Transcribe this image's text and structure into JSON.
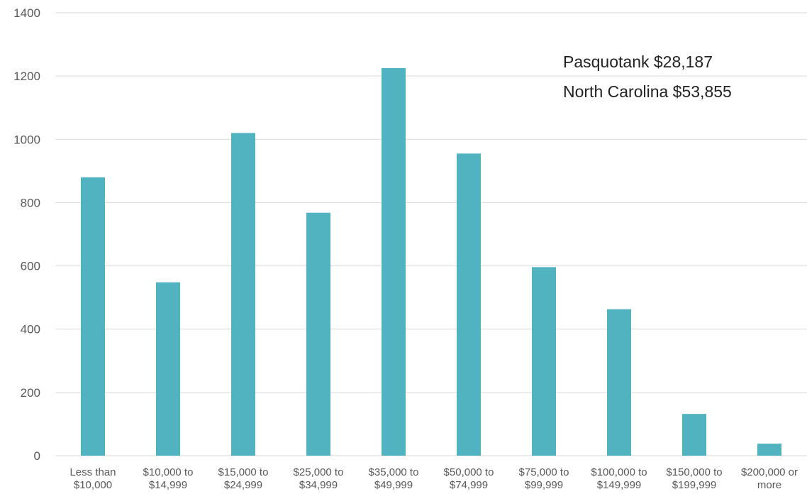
{
  "chart_data": {
    "type": "bar",
    "categories": [
      [
        "Less than",
        "$10,000"
      ],
      [
        "$10,000 to",
        "$14,999"
      ],
      [
        "$15,000 to",
        "$24,999"
      ],
      [
        "$25,000 to",
        "$34,999"
      ],
      [
        "$35,000 to",
        "$49,999"
      ],
      [
        "$50,000 to",
        "$74,999"
      ],
      [
        "$75,000 to",
        "$99,999"
      ],
      [
        "$100,000 to",
        "$149,999"
      ],
      [
        "$150,000 to",
        "$199,999"
      ],
      [
        "$200,000 or",
        "more"
      ]
    ],
    "values": [
      880,
      548,
      1020,
      768,
      1225,
      955,
      596,
      463,
      132,
      38
    ],
    "ylim": [
      0,
      1400
    ],
    "yticks": [
      0,
      200,
      400,
      600,
      800,
      1000,
      1200,
      1400
    ],
    "grid": true,
    "bar_color": "#51b2c0",
    "gridline_color": "#d9d9d9",
    "annotations": [
      "Pasquotank $28,187",
      "North Carolina $53,855"
    ]
  }
}
